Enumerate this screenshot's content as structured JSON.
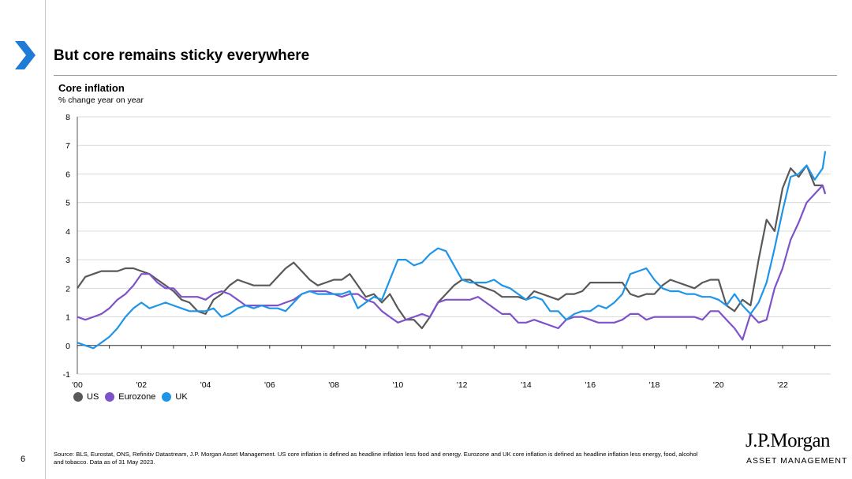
{
  "slide": {
    "title": "But core remains sticky everywhere",
    "page_number": "6",
    "source_note": "Source: BLS, Eurostat, ONS, Refinitiv Datastream, J.P. Morgan Asset Management. US core inflation is defined as headline inflation less food and energy. Eurozone and UK core inflation is defined as headline inflation less energy, food, alcohol and tobacco. Data as of 31 May 2023.",
    "logo_main": "J.P.Morgan",
    "logo_sub": "ASSET MANAGEMENT"
  },
  "colors": {
    "accent": "#1f7bd6",
    "us": "#595959",
    "eurozone": "#7e52c8",
    "uk": "#1e95e8"
  },
  "chart_data": {
    "type": "line",
    "title": "Core inflation",
    "subtitle": "% change year on year",
    "ylim": [
      -1,
      8
    ],
    "yticks": [
      "-1",
      "0",
      "1",
      "2",
      "3",
      "4",
      "5",
      "6",
      "7",
      "8"
    ],
    "xlim": [
      2000,
      2023.5
    ],
    "xticks": [
      {
        "value": 2000,
        "label": "'00"
      },
      {
        "value": 2002,
        "label": "'02"
      },
      {
        "value": 2004,
        "label": "'04"
      },
      {
        "value": 2006,
        "label": "'06"
      },
      {
        "value": 2008,
        "label": "'08"
      },
      {
        "value": 2010,
        "label": "'10"
      },
      {
        "value": 2012,
        "label": "'12"
      },
      {
        "value": 2014,
        "label": "'14"
      },
      {
        "value": 2016,
        "label": "'16"
      },
      {
        "value": 2018,
        "label": "'18"
      },
      {
        "value": 2020,
        "label": "'20"
      },
      {
        "value": 2022,
        "label": "'22"
      }
    ],
    "grid": true,
    "legend_position": "bottom-left",
    "series": [
      {
        "name": "US",
        "color_key": "us",
        "points": [
          [
            2000.0,
            2.0
          ],
          [
            2000.25,
            2.4
          ],
          [
            2000.5,
            2.5
          ],
          [
            2000.75,
            2.6
          ],
          [
            2001.0,
            2.6
          ],
          [
            2001.25,
            2.6
          ],
          [
            2001.5,
            2.7
          ],
          [
            2001.75,
            2.7
          ],
          [
            2002.0,
            2.6
          ],
          [
            2002.25,
            2.5
          ],
          [
            2002.5,
            2.3
          ],
          [
            2002.75,
            2.1
          ],
          [
            2003.0,
            1.9
          ],
          [
            2003.25,
            1.6
          ],
          [
            2003.5,
            1.5
          ],
          [
            2003.75,
            1.2
          ],
          [
            2004.0,
            1.1
          ],
          [
            2004.25,
            1.6
          ],
          [
            2004.5,
            1.8
          ],
          [
            2004.75,
            2.1
          ],
          [
            2005.0,
            2.3
          ],
          [
            2005.25,
            2.2
          ],
          [
            2005.5,
            2.1
          ],
          [
            2005.75,
            2.1
          ],
          [
            2006.0,
            2.1
          ],
          [
            2006.25,
            2.4
          ],
          [
            2006.5,
            2.7
          ],
          [
            2006.75,
            2.9
          ],
          [
            2007.0,
            2.6
          ],
          [
            2007.25,
            2.3
          ],
          [
            2007.5,
            2.1
          ],
          [
            2007.75,
            2.2
          ],
          [
            2008.0,
            2.3
          ],
          [
            2008.25,
            2.3
          ],
          [
            2008.5,
            2.5
          ],
          [
            2008.75,
            2.1
          ],
          [
            2009.0,
            1.7
          ],
          [
            2009.25,
            1.8
          ],
          [
            2009.5,
            1.5
          ],
          [
            2009.75,
            1.8
          ],
          [
            2010.0,
            1.3
          ],
          [
            2010.25,
            0.9
          ],
          [
            2010.5,
            0.9
          ],
          [
            2010.75,
            0.6
          ],
          [
            2011.0,
            1.0
          ],
          [
            2011.25,
            1.5
          ],
          [
            2011.5,
            1.8
          ],
          [
            2011.75,
            2.1
          ],
          [
            2012.0,
            2.3
          ],
          [
            2012.25,
            2.3
          ],
          [
            2012.5,
            2.1
          ],
          [
            2012.75,
            2.0
          ],
          [
            2013.0,
            1.9
          ],
          [
            2013.25,
            1.7
          ],
          [
            2013.5,
            1.7
          ],
          [
            2013.75,
            1.7
          ],
          [
            2014.0,
            1.6
          ],
          [
            2014.25,
            1.9
          ],
          [
            2014.5,
            1.8
          ],
          [
            2014.75,
            1.7
          ],
          [
            2015.0,
            1.6
          ],
          [
            2015.25,
            1.8
          ],
          [
            2015.5,
            1.8
          ],
          [
            2015.75,
            1.9
          ],
          [
            2016.0,
            2.2
          ],
          [
            2016.25,
            2.2
          ],
          [
            2016.5,
            2.2
          ],
          [
            2016.75,
            2.2
          ],
          [
            2017.0,
            2.2
          ],
          [
            2017.25,
            1.8
          ],
          [
            2017.5,
            1.7
          ],
          [
            2017.75,
            1.8
          ],
          [
            2018.0,
            1.8
          ],
          [
            2018.25,
            2.1
          ],
          [
            2018.5,
            2.3
          ],
          [
            2018.75,
            2.2
          ],
          [
            2019.0,
            2.1
          ],
          [
            2019.25,
            2.0
          ],
          [
            2019.5,
            2.2
          ],
          [
            2019.75,
            2.3
          ],
          [
            2020.0,
            2.3
          ],
          [
            2020.25,
            1.4
          ],
          [
            2020.5,
            1.2
          ],
          [
            2020.75,
            1.6
          ],
          [
            2021.0,
            1.4
          ],
          [
            2021.25,
            3.0
          ],
          [
            2021.5,
            4.4
          ],
          [
            2021.75,
            4.0
          ],
          [
            2022.0,
            5.5
          ],
          [
            2022.25,
            6.2
          ],
          [
            2022.5,
            5.9
          ],
          [
            2022.75,
            6.3
          ],
          [
            2023.0,
            5.6
          ],
          [
            2023.25,
            5.6
          ],
          [
            2023.33,
            5.3
          ]
        ]
      },
      {
        "name": "Eurozone",
        "color_key": "eurozone",
        "points": [
          [
            2000.0,
            1.0
          ],
          [
            2000.25,
            0.9
          ],
          [
            2000.5,
            1.0
          ],
          [
            2000.75,
            1.1
          ],
          [
            2001.0,
            1.3
          ],
          [
            2001.25,
            1.6
          ],
          [
            2001.5,
            1.8
          ],
          [
            2001.75,
            2.1
          ],
          [
            2002.0,
            2.5
          ],
          [
            2002.25,
            2.5
          ],
          [
            2002.5,
            2.2
          ],
          [
            2002.75,
            2.0
          ],
          [
            2003.0,
            2.0
          ],
          [
            2003.25,
            1.7
          ],
          [
            2003.5,
            1.7
          ],
          [
            2003.75,
            1.7
          ],
          [
            2004.0,
            1.6
          ],
          [
            2004.25,
            1.8
          ],
          [
            2004.5,
            1.9
          ],
          [
            2004.75,
            1.8
          ],
          [
            2005.0,
            1.6
          ],
          [
            2005.25,
            1.4
          ],
          [
            2005.5,
            1.4
          ],
          [
            2005.75,
            1.4
          ],
          [
            2006.0,
            1.4
          ],
          [
            2006.25,
            1.4
          ],
          [
            2006.5,
            1.5
          ],
          [
            2006.75,
            1.6
          ],
          [
            2007.0,
            1.8
          ],
          [
            2007.25,
            1.9
          ],
          [
            2007.5,
            1.9
          ],
          [
            2007.75,
            1.9
          ],
          [
            2008.0,
            1.8
          ],
          [
            2008.25,
            1.7
          ],
          [
            2008.5,
            1.8
          ],
          [
            2008.75,
            1.8
          ],
          [
            2009.0,
            1.6
          ],
          [
            2009.25,
            1.5
          ],
          [
            2009.5,
            1.2
          ],
          [
            2009.75,
            1.0
          ],
          [
            2010.0,
            0.8
          ],
          [
            2010.25,
            0.9
          ],
          [
            2010.5,
            1.0
          ],
          [
            2010.75,
            1.1
          ],
          [
            2011.0,
            1.0
          ],
          [
            2011.25,
            1.5
          ],
          [
            2011.5,
            1.6
          ],
          [
            2011.75,
            1.6
          ],
          [
            2012.0,
            1.6
          ],
          [
            2012.25,
            1.6
          ],
          [
            2012.5,
            1.7
          ],
          [
            2012.75,
            1.5
          ],
          [
            2013.0,
            1.3
          ],
          [
            2013.25,
            1.1
          ],
          [
            2013.5,
            1.1
          ],
          [
            2013.75,
            0.8
          ],
          [
            2014.0,
            0.8
          ],
          [
            2014.25,
            0.9
          ],
          [
            2014.5,
            0.8
          ],
          [
            2014.75,
            0.7
          ],
          [
            2015.0,
            0.6
          ],
          [
            2015.25,
            0.9
          ],
          [
            2015.5,
            1.0
          ],
          [
            2015.75,
            1.0
          ],
          [
            2016.0,
            0.9
          ],
          [
            2016.25,
            0.8
          ],
          [
            2016.5,
            0.8
          ],
          [
            2016.75,
            0.8
          ],
          [
            2017.0,
            0.9
          ],
          [
            2017.25,
            1.1
          ],
          [
            2017.5,
            1.1
          ],
          [
            2017.75,
            0.9
          ],
          [
            2018.0,
            1.0
          ],
          [
            2018.25,
            1.0
          ],
          [
            2018.5,
            1.0
          ],
          [
            2018.75,
            1.0
          ],
          [
            2019.0,
            1.0
          ],
          [
            2019.25,
            1.0
          ],
          [
            2019.5,
            0.9
          ],
          [
            2019.75,
            1.2
          ],
          [
            2020.0,
            1.2
          ],
          [
            2020.25,
            0.9
          ],
          [
            2020.5,
            0.6
          ],
          [
            2020.75,
            0.2
          ],
          [
            2021.0,
            1.1
          ],
          [
            2021.25,
            0.8
          ],
          [
            2021.5,
            0.9
          ],
          [
            2021.75,
            2.0
          ],
          [
            2022.0,
            2.7
          ],
          [
            2022.25,
            3.7
          ],
          [
            2022.5,
            4.3
          ],
          [
            2022.75,
            5.0
          ],
          [
            2023.0,
            5.3
          ],
          [
            2023.25,
            5.6
          ],
          [
            2023.33,
            5.3
          ]
        ]
      },
      {
        "name": "UK",
        "color_key": "uk",
        "points": [
          [
            2000.0,
            0.1
          ],
          [
            2000.25,
            0.0
          ],
          [
            2000.5,
            -0.1
          ],
          [
            2000.75,
            0.1
          ],
          [
            2001.0,
            0.3
          ],
          [
            2001.25,
            0.6
          ],
          [
            2001.5,
            1.0
          ],
          [
            2001.75,
            1.3
          ],
          [
            2002.0,
            1.5
          ],
          [
            2002.25,
            1.3
          ],
          [
            2002.5,
            1.4
          ],
          [
            2002.75,
            1.5
          ],
          [
            2003.0,
            1.4
          ],
          [
            2003.25,
            1.3
          ],
          [
            2003.5,
            1.2
          ],
          [
            2003.75,
            1.2
          ],
          [
            2004.0,
            1.2
          ],
          [
            2004.25,
            1.3
          ],
          [
            2004.5,
            1.0
          ],
          [
            2004.75,
            1.1
          ],
          [
            2005.0,
            1.3
          ],
          [
            2005.25,
            1.4
          ],
          [
            2005.5,
            1.3
          ],
          [
            2005.75,
            1.4
          ],
          [
            2006.0,
            1.3
          ],
          [
            2006.25,
            1.3
          ],
          [
            2006.5,
            1.2
          ],
          [
            2006.75,
            1.5
          ],
          [
            2007.0,
            1.8
          ],
          [
            2007.25,
            1.9
          ],
          [
            2007.5,
            1.8
          ],
          [
            2007.75,
            1.8
          ],
          [
            2008.0,
            1.8
          ],
          [
            2008.25,
            1.8
          ],
          [
            2008.5,
            1.9
          ],
          [
            2008.75,
            1.3
          ],
          [
            2009.0,
            1.5
          ],
          [
            2009.25,
            1.7
          ],
          [
            2009.5,
            1.6
          ],
          [
            2009.75,
            2.3
          ],
          [
            2010.0,
            3.0
          ],
          [
            2010.25,
            3.0
          ],
          [
            2010.5,
            2.8
          ],
          [
            2010.75,
            2.9
          ],
          [
            2011.0,
            3.2
          ],
          [
            2011.25,
            3.4
          ],
          [
            2011.5,
            3.3
          ],
          [
            2011.75,
            2.8
          ],
          [
            2012.0,
            2.3
          ],
          [
            2012.25,
            2.2
          ],
          [
            2012.5,
            2.2
          ],
          [
            2012.75,
            2.2
          ],
          [
            2013.0,
            2.3
          ],
          [
            2013.25,
            2.1
          ],
          [
            2013.5,
            2.0
          ],
          [
            2013.75,
            1.8
          ],
          [
            2014.0,
            1.6
          ],
          [
            2014.25,
            1.7
          ],
          [
            2014.5,
            1.6
          ],
          [
            2014.75,
            1.2
          ],
          [
            2015.0,
            1.2
          ],
          [
            2015.25,
            0.9
          ],
          [
            2015.5,
            1.1
          ],
          [
            2015.75,
            1.2
          ],
          [
            2016.0,
            1.2
          ],
          [
            2016.25,
            1.4
          ],
          [
            2016.5,
            1.3
          ],
          [
            2016.75,
            1.5
          ],
          [
            2017.0,
            1.8
          ],
          [
            2017.25,
            2.5
          ],
          [
            2017.5,
            2.6
          ],
          [
            2017.75,
            2.7
          ],
          [
            2018.0,
            2.3
          ],
          [
            2018.25,
            2.0
          ],
          [
            2018.5,
            1.9
          ],
          [
            2018.75,
            1.9
          ],
          [
            2019.0,
            1.8
          ],
          [
            2019.25,
            1.8
          ],
          [
            2019.5,
            1.7
          ],
          [
            2019.75,
            1.7
          ],
          [
            2020.0,
            1.6
          ],
          [
            2020.25,
            1.4
          ],
          [
            2020.5,
            1.8
          ],
          [
            2020.75,
            1.4
          ],
          [
            2021.0,
            1.1
          ],
          [
            2021.25,
            1.5
          ],
          [
            2021.5,
            2.2
          ],
          [
            2021.75,
            3.4
          ],
          [
            2022.0,
            4.7
          ],
          [
            2022.25,
            5.9
          ],
          [
            2022.5,
            6.0
          ],
          [
            2022.75,
            6.3
          ],
          [
            2023.0,
            5.8
          ],
          [
            2023.25,
            6.2
          ],
          [
            2023.33,
            6.8
          ]
        ]
      }
    ]
  }
}
